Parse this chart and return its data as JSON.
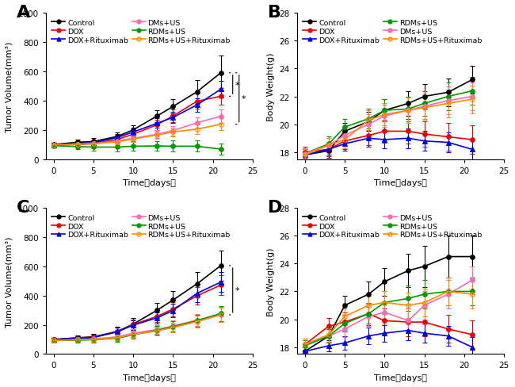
{
  "time_points": [
    0,
    3,
    5,
    8,
    10,
    13,
    15,
    18,
    21
  ],
  "A": {
    "title": "A",
    "ylabel": "Tumor Volume(mm³)",
    "xlabel": "Time（days）",
    "ylim": [
      0,
      1000
    ],
    "yticks": [
      0,
      200,
      400,
      600,
      800,
      1000
    ],
    "xlim": [
      -1,
      25
    ],
    "series": {
      "Control": {
        "color": "#000000",
        "marker": "o",
        "linestyle": "-",
        "values": [
          100,
          115,
          120,
          155,
          200,
          295,
          360,
          460,
          590
        ],
        "yerr": [
          10,
          20,
          25,
          25,
          30,
          40,
          50,
          80,
          120
        ]
      },
      "DOX": {
        "color": "#ee0000",
        "marker": "o",
        "linestyle": "-",
        "values": [
          95,
          100,
          105,
          135,
          170,
          235,
          295,
          395,
          430
        ],
        "yerr": [
          10,
          15,
          18,
          22,
          28,
          35,
          42,
          52,
          58
        ]
      },
      "DOX+Rituximab": {
        "color": "#0000ee",
        "marker": "^",
        "linestyle": "-",
        "values": [
          98,
          105,
          112,
          148,
          185,
          245,
          285,
          370,
          478
        ],
        "yerr": [
          10,
          15,
          18,
          25,
          28,
          33,
          40,
          48,
          58
        ]
      },
      "DMs+US": {
        "color": "#ff69b4",
        "marker": "o",
        "linestyle": "-",
        "values": [
          95,
          102,
          105,
          125,
          142,
          170,
          195,
          248,
          293
        ],
        "yerr": [
          10,
          15,
          18,
          22,
          25,
          28,
          32,
          38,
          48
        ]
      },
      "RDMs+US": {
        "color": "#009900",
        "marker": "o",
        "linestyle": "-",
        "values": [
          92,
          85,
          82,
          82,
          88,
          90,
          88,
          88,
          68
        ],
        "yerr": [
          10,
          18,
          22,
          28,
          32,
          32,
          38,
          38,
          40
        ]
      },
      "RDMs+US+Rituximab": {
        "color": "#ff8c00",
        "marker": "o",
        "linestyle": "-",
        "values": [
          98,
          102,
          105,
          118,
          138,
          165,
          185,
          205,
          238
        ],
        "yerr": [
          10,
          15,
          18,
          20,
          22,
          26,
          30,
          36,
          42
        ]
      }
    },
    "legend_order": [
      "Control",
      "DOX",
      "DOX+Rituximab",
      "DMs+US",
      "RDMs+US",
      "RDMs+US+Rituximab"
    ],
    "legend_ncol": 2,
    "significance": true
  },
  "B": {
    "title": "B",
    "ylabel": "Body Weight(g)",
    "xlabel": "Time（days）",
    "ylim": [
      17.5,
      28
    ],
    "yticks": [
      18,
      20,
      22,
      24,
      26,
      28
    ],
    "xlim": [
      -1,
      25
    ],
    "series": {
      "Control": {
        "color": "#000000",
        "marker": "o",
        "linestyle": "-",
        "values": [
          17.8,
          18.1,
          19.5,
          20.2,
          21.0,
          21.5,
          22.0,
          22.3,
          23.2
        ],
        "yerr": [
          0.4,
          0.5,
          0.6,
          0.7,
          0.8,
          0.9,
          0.9,
          1.0,
          1.0
        ]
      },
      "DOX": {
        "color": "#ee0000",
        "marker": "o",
        "linestyle": "-",
        "values": [
          18.0,
          18.2,
          18.8,
          19.2,
          19.5,
          19.5,
          19.3,
          19.1,
          18.9
        ],
        "yerr": [
          0.4,
          0.5,
          0.6,
          0.7,
          0.8,
          0.9,
          0.9,
          1.0,
          1.0
        ]
      },
      "DOX+Rituximab": {
        "color": "#0000ee",
        "marker": "^",
        "linestyle": "-",
        "values": [
          17.8,
          18.2,
          18.6,
          19.0,
          18.9,
          19.0,
          18.8,
          18.7,
          18.2
        ],
        "yerr": [
          0.3,
          0.4,
          0.5,
          0.6,
          0.6,
          0.7,
          0.7,
          0.7,
          0.7
        ]
      },
      "RDMs+US": {
        "color": "#009900",
        "marker": "o",
        "linestyle": "-",
        "values": [
          17.9,
          18.6,
          19.8,
          20.4,
          21.0,
          21.1,
          21.5,
          22.0,
          22.4
        ],
        "yerr": [
          0.4,
          0.5,
          0.6,
          0.7,
          0.8,
          0.9,
          0.9,
          1.0,
          1.0
        ]
      },
      "DMs+US": {
        "color": "#ff69b4",
        "marker": "o",
        "linestyle": "-",
        "values": [
          17.9,
          18.5,
          19.2,
          20.0,
          20.6,
          21.0,
          21.3,
          21.7,
          22.0
        ],
        "yerr": [
          0.4,
          0.5,
          0.6,
          0.7,
          0.8,
          0.9,
          0.9,
          1.0,
          1.0
        ]
      },
      "RDMs+US+Rituximab": {
        "color": "#ff8c00",
        "marker": "o",
        "linestyle": "-",
        "values": [
          17.8,
          18.5,
          18.9,
          20.3,
          20.7,
          21.0,
          21.2,
          21.5,
          21.8
        ],
        "yerr": [
          0.4,
          0.5,
          0.6,
          0.7,
          0.8,
          0.9,
          0.9,
          1.0,
          1.0
        ]
      }
    },
    "legend_order": [
      "Control",
      "DOX",
      "DOX+Rituximab",
      "RDMs+US",
      "DMs+US",
      "RDMs+US+Rituximab"
    ],
    "legend_ncol": 2,
    "significance": false
  },
  "C": {
    "title": "C",
    "ylabel": "Tumor Volume(mm³)",
    "xlabel": "Time（days）",
    "ylim": [
      0,
      1000
    ],
    "yticks": [
      0,
      200,
      400,
      600,
      800,
      1000
    ],
    "xlim": [
      -1,
      25
    ],
    "series": {
      "Control": {
        "color": "#000000",
        "marker": "o",
        "linestyle": "-",
        "values": [
          100,
          112,
          118,
          155,
          205,
          300,
          370,
          480,
          605
        ],
        "yerr": [
          12,
          18,
          22,
          32,
          42,
          52,
          62,
          82,
          105
        ]
      },
      "DOX": {
        "color": "#ee0000",
        "marker": "o",
        "linestyle": "-",
        "values": [
          98,
          108,
          115,
          152,
          202,
          258,
          308,
          398,
          472
        ],
        "yerr": [
          12,
          16,
          20,
          28,
          32,
          38,
          48,
          58,
          68
        ]
      },
      "DOX+Rituximab": {
        "color": "#0000ee",
        "marker": "^",
        "linestyle": "-",
        "values": [
          100,
          107,
          113,
          152,
          198,
          248,
          298,
          415,
          492
        ],
        "yerr": [
          12,
          16,
          20,
          28,
          32,
          38,
          48,
          58,
          68
        ]
      },
      "DMs+US": {
        "color": "#ff69b4",
        "marker": "o",
        "linestyle": "-",
        "values": [
          95,
          98,
          103,
          118,
          142,
          168,
          192,
          232,
          272
        ],
        "yerr": [
          12,
          16,
          18,
          22,
          26,
          30,
          36,
          42,
          52
        ]
      },
      "RDMs+US": {
        "color": "#009900",
        "marker": "o",
        "linestyle": "-",
        "values": [
          93,
          95,
          98,
          108,
          132,
          162,
          188,
          228,
          278
        ],
        "yerr": [
          12,
          16,
          18,
          22,
          26,
          30,
          36,
          42,
          52
        ]
      },
      "RDMs+US+Rituximab": {
        "color": "#ff8c00",
        "marker": "o",
        "linestyle": "-",
        "values": [
          93,
          98,
          100,
          112,
          135,
          158,
          182,
          222,
          268
        ],
        "yerr": [
          12,
          16,
          18,
          20,
          24,
          28,
          34,
          40,
          48
        ]
      }
    },
    "legend_order": [
      "Control",
      "DOX",
      "DOX+Rituximab",
      "DMs+US",
      "RDMs+US",
      "RDMs+US+Rituximab"
    ],
    "legend_ncol": 2,
    "significance": true
  },
  "D": {
    "title": "D",
    "ylabel": "Body Weight(g)",
    "xlabel": "Time（days）",
    "ylim": [
      17.5,
      28
    ],
    "yticks": [
      18,
      20,
      22,
      24,
      26,
      28
    ],
    "xlim": [
      -1,
      25
    ],
    "series": {
      "Control": {
        "color": "#000000",
        "marker": "o",
        "linestyle": "-",
        "values": [
          17.7,
          18.8,
          21.0,
          21.8,
          22.7,
          23.5,
          23.8,
          24.5,
          24.5
        ],
        "yerr": [
          0.4,
          0.5,
          0.7,
          0.9,
          1.0,
          1.2,
          1.5,
          1.5,
          1.5
        ]
      },
      "DOX": {
        "color": "#ee0000",
        "marker": "o",
        "linestyle": "-",
        "values": [
          18.2,
          19.5,
          19.8,
          20.4,
          19.9,
          19.8,
          19.8,
          19.3,
          18.9
        ],
        "yerr": [
          0.4,
          0.6,
          0.7,
          0.8,
          0.9,
          1.0,
          1.0,
          1.0,
          1.0
        ]
      },
      "DOX+Rituximab": {
        "color": "#0000ee",
        "marker": "^",
        "linestyle": "-",
        "values": [
          17.7,
          18.1,
          18.3,
          18.8,
          19.0,
          19.2,
          19.0,
          18.8,
          18.0
        ],
        "yerr": [
          0.3,
          0.4,
          0.5,
          0.6,
          0.6,
          0.7,
          0.7,
          0.7,
          0.7
        ]
      },
      "DMs+US": {
        "color": "#ff69b4",
        "marker": "o",
        "linestyle": "-",
        "values": [
          18.2,
          18.8,
          19.3,
          20.2,
          20.5,
          19.9,
          21.0,
          21.8,
          22.8
        ],
        "yerr": [
          0.4,
          0.5,
          0.6,
          0.7,
          0.8,
          0.9,
          1.0,
          1.0,
          1.0
        ]
      },
      "RDMs+US": {
        "color": "#009900",
        "marker": "o",
        "linestyle": "-",
        "values": [
          18.1,
          18.8,
          19.7,
          20.4,
          21.2,
          21.5,
          21.8,
          22.0,
          22.0
        ],
        "yerr": [
          0.4,
          0.5,
          0.6,
          0.7,
          0.8,
          0.9,
          1.0,
          1.0,
          1.0
        ]
      },
      "RDMs+US+Rituximab": {
        "color": "#ff8c00",
        "marker": "o",
        "linestyle": "-",
        "values": [
          18.2,
          18.9,
          20.2,
          21.0,
          21.2,
          21.0,
          21.2,
          22.0,
          21.8
        ],
        "yerr": [
          0.4,
          0.5,
          0.6,
          0.7,
          0.8,
          0.9,
          1.0,
          1.0,
          1.0
        ]
      }
    },
    "legend_order": [
      "Control",
      "DOX",
      "DOX+Rituximab",
      "DMs+US",
      "RDMs+US",
      "RDMs+US+Rituximab"
    ],
    "legend_ncol": 2,
    "significance": false
  },
  "markersize": 4,
  "linewidth": 1.2,
  "capsize": 2,
  "elinewidth": 0.8,
  "label_fontsize": 8,
  "tick_fontsize": 7.5,
  "legend_fontsize": 6.8,
  "panel_label_fontsize": 16,
  "background_color": "#ffffff"
}
